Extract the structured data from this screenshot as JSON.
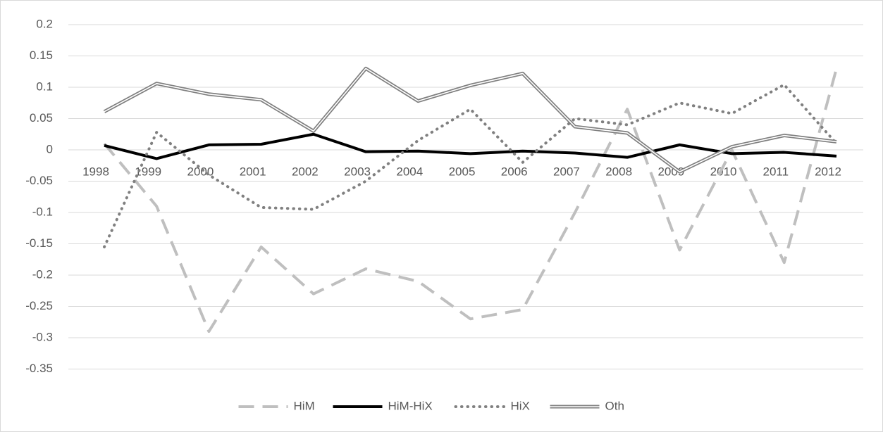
{
  "chart_data": {
    "type": "line",
    "categories": [
      "1998",
      "1999",
      "2000",
      "2001",
      "2002",
      "2003",
      "2004",
      "2005",
      "2006",
      "2007",
      "2008",
      "2009",
      "2010",
      "2011",
      "2012"
    ],
    "series": [
      {
        "name": "HiM",
        "color": "#bfbfbf",
        "style": "dashed",
        "values": [
          0.01,
          -0.09,
          -0.29,
          -0.155,
          -0.23,
          -0.19,
          -0.21,
          -0.27,
          -0.255,
          -0.1,
          0.065,
          -0.16,
          0,
          -0.18,
          0.13
        ]
      },
      {
        "name": "HiM-HiX",
        "color": "#000000",
        "style": "solid",
        "values": [
          0.007,
          -0.014,
          0.008,
          0.009,
          0.025,
          -0.003,
          -0.002,
          -0.006,
          -0.002,
          -0.005,
          -0.012,
          0.008,
          -0.006,
          -0.004,
          -0.01
        ]
      },
      {
        "name": "HiX",
        "color": "#808080",
        "style": "dotted",
        "values": [
          -0.155,
          0.028,
          -0.04,
          -0.092,
          -0.095,
          -0.05,
          0.015,
          0.065,
          -0.02,
          0.05,
          0.04,
          0.075,
          0.058,
          0.104,
          0.01
        ]
      },
      {
        "name": "Oth",
        "color": "#7f7f7f",
        "style": "double",
        "values": [
          0.061,
          0.106,
          0.089,
          0.08,
          0.03,
          0.13,
          0.078,
          0.103,
          0.122,
          0.037,
          0.027,
          -0.035,
          0.005,
          0.023,
          0.013
        ]
      }
    ],
    "ylim": [
      -0.35,
      0.2
    ],
    "yticks": [
      0.2,
      0.15,
      0.1,
      0.05,
      0,
      -0.05,
      -0.1,
      -0.15,
      -0.2,
      -0.25,
      -0.3,
      -0.35
    ],
    "grid": true,
    "legend": "bottom"
  }
}
